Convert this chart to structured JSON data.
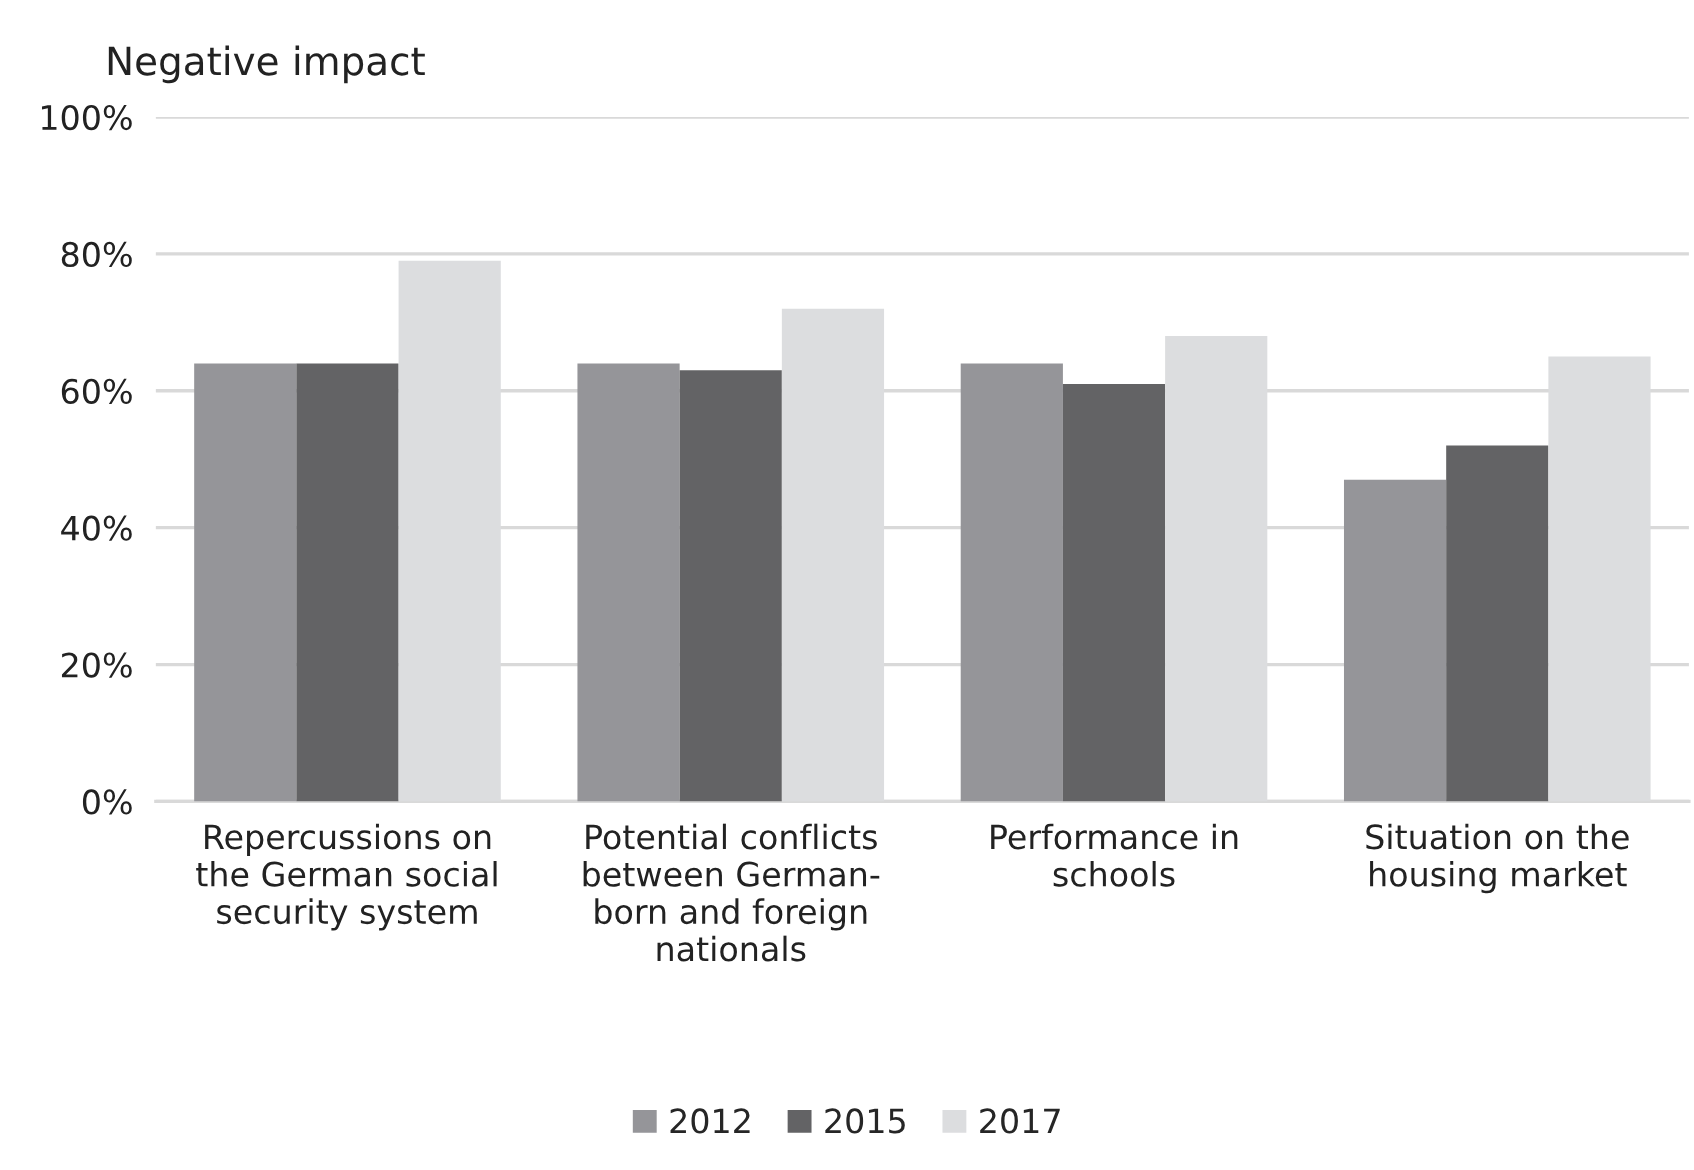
{
  "chart_data": {
    "type": "bar",
    "title": "Negative impact",
    "categories": [
      "Repercussions on\nthe German social\nsecurity system",
      "Potential conflicts\nbetween German-\nborn and foreign\nnationals",
      "Performance in\nschools",
      "Situation on the\nhousing market"
    ],
    "series": [
      {
        "name": "2012",
        "color": "#959599",
        "values": [
          64,
          64,
          64,
          47
        ]
      },
      {
        "name": "2015",
        "color": "#636365",
        "values": [
          64,
          63,
          61,
          52
        ]
      },
      {
        "name": "2017",
        "color": "#dcdddf",
        "values": [
          79,
          72,
          68,
          65
        ]
      }
    ],
    "ylim": [
      0,
      100
    ],
    "yticks": [
      {
        "value": 0,
        "label": "0%"
      },
      {
        "value": 20,
        "label": "20%"
      },
      {
        "value": 40,
        "label": "40%"
      },
      {
        "value": 60,
        "label": "60%"
      },
      {
        "value": 80,
        "label": "80%"
      },
      {
        "value": 100,
        "label": "100%"
      }
    ],
    "grid": "y",
    "legend": "bottom"
  }
}
